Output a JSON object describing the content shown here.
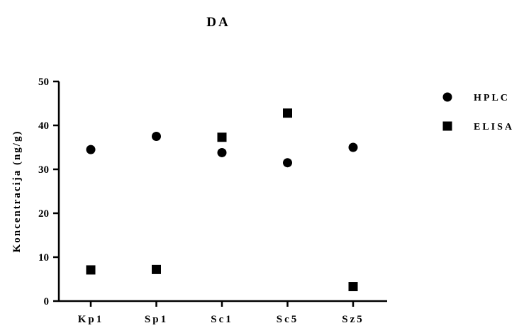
{
  "chart_data": {
    "type": "scatter",
    "title": "DA",
    "xlabel": "",
    "ylabel": "Koncentracija (ng/g)",
    "categories": [
      "Kp1",
      "Sp1",
      "Sc1",
      "Sc5",
      "Sz5"
    ],
    "ylim": [
      0,
      50
    ],
    "yticks": [
      "0",
      "10",
      "20",
      "30",
      "40",
      "50"
    ],
    "grid": false,
    "legend_position": "right",
    "series": [
      {
        "name": "HPLC",
        "marker": "circle",
        "color": "#000000",
        "values": [
          34.5,
          37.5,
          33.8,
          31.5,
          35.0
        ]
      },
      {
        "name": "ELISA",
        "marker": "square",
        "color": "#000000",
        "values": [
          7.1,
          7.2,
          37.3,
          42.8,
          3.3
        ]
      }
    ]
  }
}
